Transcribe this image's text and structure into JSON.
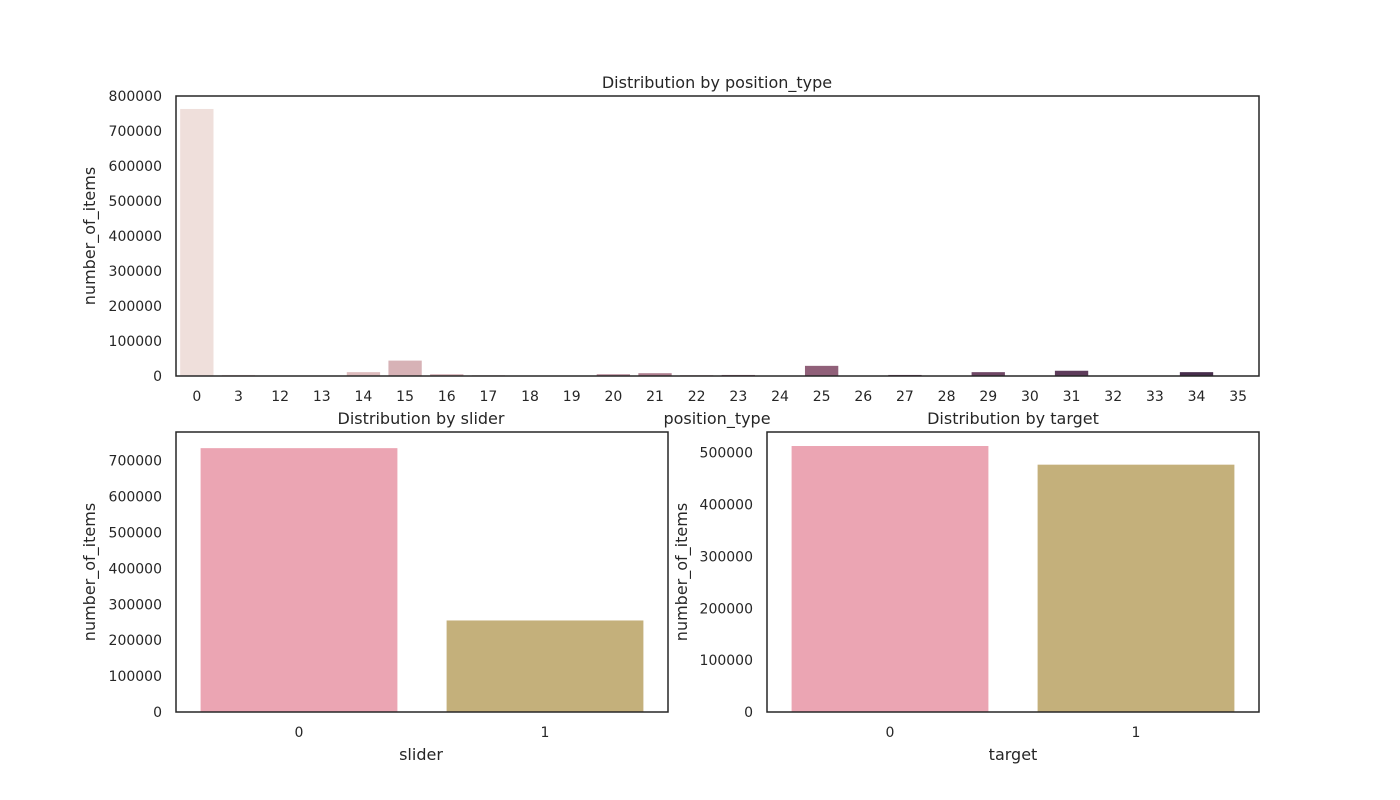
{
  "chart_data": [
    {
      "type": "bar",
      "title": "Distribution by position_type",
      "xlabel": "position_type",
      "ylabel": "number_of_items",
      "categories": [
        "0",
        "3",
        "12",
        "13",
        "14",
        "15",
        "16",
        "17",
        "18",
        "19",
        "20",
        "21",
        "22",
        "23",
        "24",
        "25",
        "26",
        "27",
        "28",
        "29",
        "30",
        "31",
        "32",
        "33",
        "34",
        "35"
      ],
      "values": [
        763000,
        3000,
        1000,
        1500,
        11000,
        44000,
        5000,
        2000,
        1500,
        1500,
        5000,
        8000,
        2000,
        3000,
        1000,
        29000,
        1000,
        3000,
        1000,
        11000,
        1000,
        15000,
        1000,
        1000,
        11000,
        1000
      ],
      "ylim": [
        0,
        800000
      ],
      "yticks": [
        "0",
        "100000",
        "200000",
        "300000",
        "400000",
        "500000",
        "600000",
        "700000",
        "800000"
      ],
      "colors": [
        "#efdfdb",
        "#ebd6d3",
        "#e7cdcc",
        "#e2c4c4",
        "#ddbbbd",
        "#d7b2b6",
        "#d1a9af",
        "#caa0a8",
        "#c497a2",
        "#bd8e9b",
        "#b68695",
        "#af7e8f",
        "#a87689",
        "#a06e84",
        "#98667e",
        "#906079",
        "#885974",
        "#7f536f",
        "#774d6a",
        "#6f4765",
        "#674260",
        "#5e3c5b",
        "#563756",
        "#4e3251",
        "#472d4c",
        "#3f2847"
      ],
      "grid": false
    },
    {
      "type": "bar",
      "title": "Distribution by slider",
      "xlabel": "slider",
      "ylabel": "number_of_items",
      "categories": [
        "0",
        "1"
      ],
      "values": [
        735000,
        255000
      ],
      "ylim": [
        0,
        780000
      ],
      "yticks": [
        "0",
        "100000",
        "200000",
        "300000",
        "400000",
        "500000",
        "600000",
        "700000"
      ],
      "colors": [
        "#eba5b3",
        "#c4b07b"
      ],
      "grid": false
    },
    {
      "type": "bar",
      "title": "Distribution by target",
      "xlabel": "target",
      "ylabel": "number_of_items",
      "categories": [
        "0",
        "1"
      ],
      "values": [
        513000,
        477000
      ],
      "ylim": [
        0,
        540000
      ],
      "yticks": [
        "0",
        "100000",
        "200000",
        "300000",
        "400000",
        "500000"
      ],
      "colors": [
        "#eba5b3",
        "#c4b07b"
      ],
      "grid": false
    }
  ]
}
